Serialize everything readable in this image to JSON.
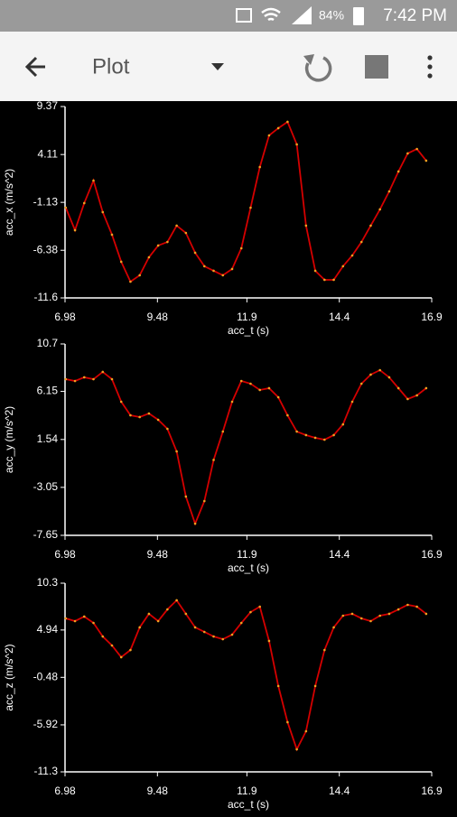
{
  "status_bar": {
    "battery": "84%",
    "time": "7:42 PM"
  },
  "app_bar": {
    "title": "Plot"
  },
  "chart_data": [
    {
      "type": "line",
      "y_label": "acc_x (m/s^2)",
      "x_label": "acc_t (s)",
      "x": [
        7,
        7.25,
        7.5,
        7.75,
        8,
        8.25,
        8.5,
        8.75,
        9,
        9.25,
        9.5,
        9.75,
        10,
        10.25,
        10.5,
        10.75,
        11,
        11.25,
        11.5,
        11.75,
        12,
        12.25,
        12.5,
        12.75,
        13,
        13.25,
        13.5,
        13.75,
        14,
        14.25,
        14.5,
        14.75,
        15,
        15.25,
        15.5,
        15.75,
        16,
        16.25,
        16.5,
        16.75
      ],
      "series": [
        {
          "color": "#d40000",
          "marker_color": "#f0a020",
          "values": [
            -1.71,
            -4.18,
            -1.21,
            1.26,
            -2.2,
            -4.67,
            -7.64,
            -9.82,
            -9.12,
            -7.15,
            -5.86,
            -5.47,
            -3.68,
            -4.48,
            -6.65,
            -8.13,
            -8.63,
            -9.12,
            -8.43,
            -6.16,
            -1.71,
            2.74,
            6.2,
            7.0,
            7.69,
            5.22,
            -3.68,
            -8.63,
            -9.62,
            -9.62,
            -8.13,
            -6.95,
            -5.47,
            -3.68,
            -1.9,
            0.07,
            2.25,
            4.23,
            4.72,
            3.44
          ]
        }
      ],
      "xlim": [
        6.98,
        16.9
      ],
      "xticks": [
        6.98,
        9.48,
        11.9,
        14.4,
        16.9
      ],
      "ylim": [
        -11.6,
        9.37
      ],
      "yticks": [
        -11.6,
        -6.38,
        -1.13,
        4.11,
        9.37
      ]
    },
    {
      "type": "line",
      "y_label": "acc_y (m/s^2)",
      "x_label": "acc_t (s)",
      "x": [
        7,
        7.25,
        7.5,
        7.75,
        8,
        8.25,
        8.5,
        8.75,
        9,
        9.25,
        9.5,
        9.75,
        10,
        10.25,
        10.5,
        10.75,
        11,
        11.25,
        11.5,
        11.75,
        12,
        12.25,
        12.5,
        12.75,
        13,
        13.25,
        13.5,
        13.75,
        14,
        14.25,
        14.5,
        14.75,
        15,
        15.25,
        15.5,
        15.75,
        16,
        16.25,
        16.5,
        16.75
      ],
      "series": [
        {
          "color": "#d40000",
          "marker_color": "#f0a020",
          "values": [
            7.32,
            7.15,
            7.5,
            7.32,
            8.02,
            7.32,
            5.16,
            3.86,
            3.69,
            4.03,
            3.43,
            2.56,
            0.4,
            -3.93,
            -6.53,
            -4.36,
            -0.42,
            2.3,
            5.16,
            7.15,
            6.89,
            6.29,
            6.46,
            5.59,
            3.86,
            2.3,
            1.96,
            1.7,
            1.52,
            1.96,
            2.99,
            5.16,
            6.89,
            7.76,
            8.19,
            7.5,
            6.46,
            5.42,
            5.77,
            6.46
          ]
        }
      ],
      "xlim": [
        6.98,
        16.9
      ],
      "xticks": [
        6.98,
        9.48,
        11.9,
        14.4,
        16.9
      ],
      "ylim": [
        -7.65,
        10.7
      ],
      "yticks": [
        -7.65,
        -3.05,
        1.54,
        6.15,
        10.7
      ]
    },
    {
      "type": "line",
      "y_label": "acc_z (m/s^2)",
      "x_label": "acc_t (s)",
      "x": [
        7,
        7.25,
        7.5,
        7.75,
        8,
        8.25,
        8.5,
        8.75,
        9,
        9.25,
        9.5,
        9.75,
        10,
        10.25,
        10.5,
        10.75,
        11,
        11.25,
        11.5,
        11.75,
        12,
        12.25,
        12.5,
        12.75,
        13,
        13.25,
        13.5,
        13.75,
        14,
        14.25,
        14.5,
        14.75,
        15,
        15.25,
        15.5,
        15.75,
        16,
        16.25,
        16.5,
        16.75
      ],
      "series": [
        {
          "color": "#d40000",
          "marker_color": "#f0a020",
          "values": [
            6.27,
            5.96,
            6.48,
            5.75,
            4.2,
            3.17,
            1.83,
            2.65,
            5.24,
            6.79,
            5.96,
            7.3,
            8.34,
            6.79,
            5.24,
            4.72,
            4.2,
            3.89,
            4.41,
            5.75,
            6.99,
            7.61,
            3.69,
            -1.47,
            -5.61,
            -8.72,
            -6.65,
            -1.47,
            2.65,
            5.24,
            6.58,
            6.79,
            6.27,
            5.96,
            6.58,
            6.79,
            7.3,
            7.82,
            7.61,
            6.79
          ]
        }
      ],
      "xlim": [
        6.98,
        16.9
      ],
      "xticks": [
        6.98,
        9.48,
        11.9,
        14.4,
        16.9
      ],
      "ylim": [
        -11.3,
        10.3
      ],
      "yticks": [
        -11.3,
        -5.92,
        -0.48,
        4.94,
        10.3
      ]
    }
  ]
}
